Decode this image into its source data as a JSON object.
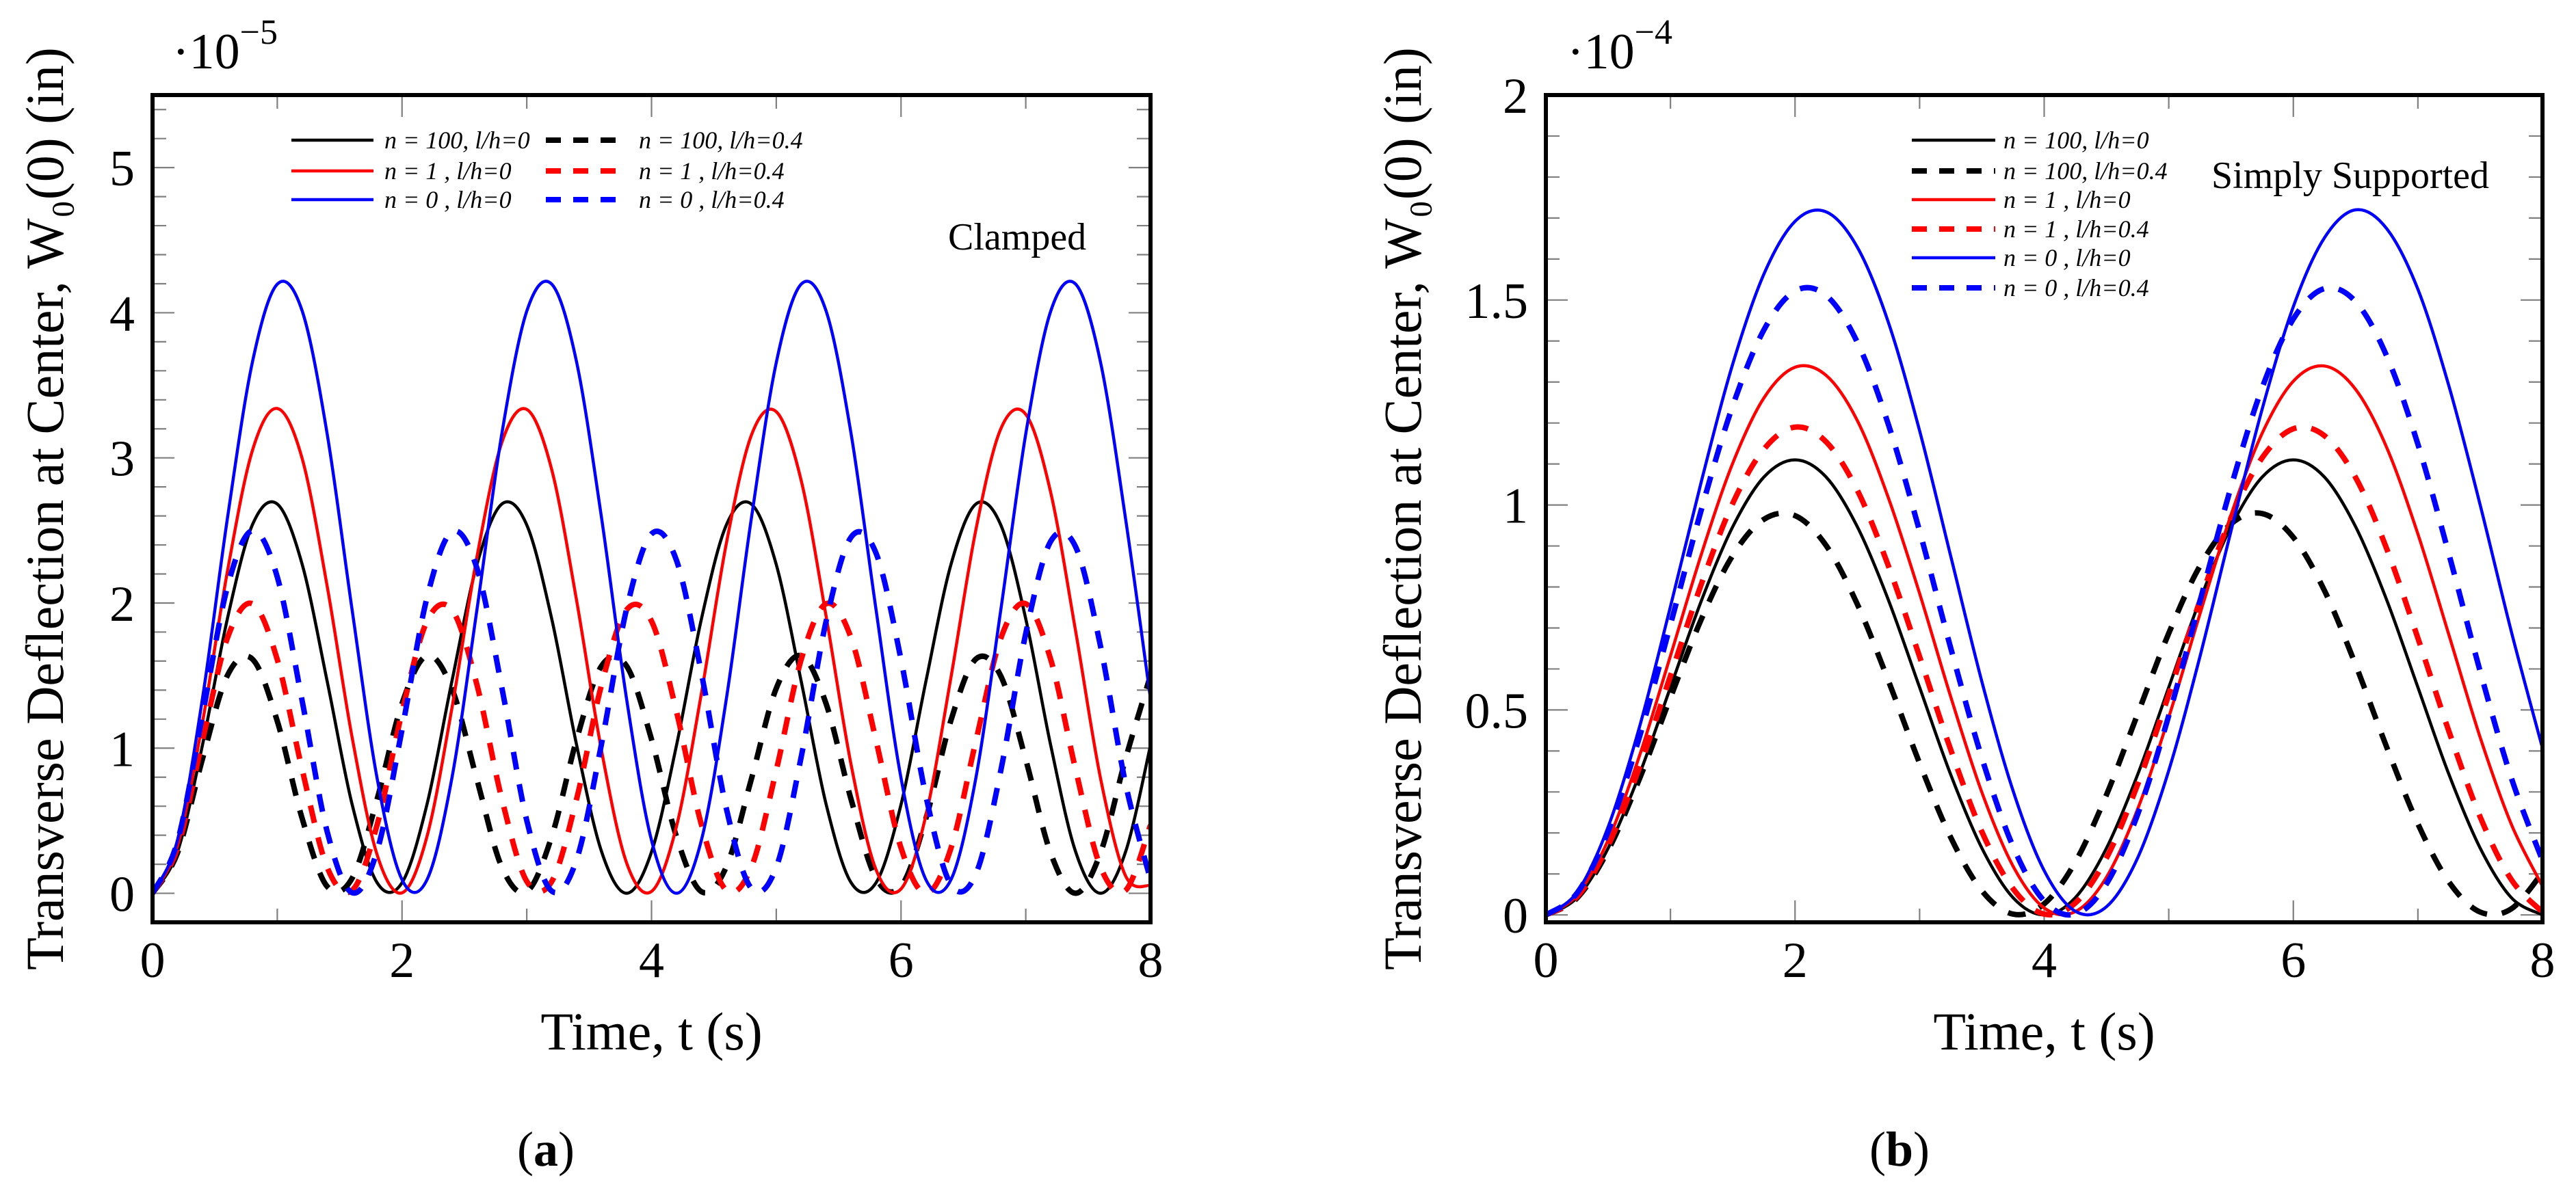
{
  "chart_data": [
    {
      "type": "line",
      "panel_label": "a",
      "title": "",
      "annotation": "Clamped",
      "xlabel": "Time, t (s)",
      "ylabel": "Transverse Deflection at Center, W₀(0) (in)",
      "y_multiplier": {
        "base": "·10",
        "exponent": "−5"
      },
      "xlim": [
        0,
        8
      ],
      "ylim": [
        -0.2,
        5.5
      ],
      "x_ticks": [
        0,
        2,
        4,
        6,
        8
      ],
      "x_tick_labels": [
        "0",
        "2",
        "4",
        "6",
        "8"
      ],
      "x_minor_step": 1,
      "y_ticks": [
        0,
        1,
        2,
        3,
        4,
        5
      ],
      "y_tick_labels": [
        "0",
        "1",
        "2",
        "3",
        "4",
        "5"
      ],
      "y_minor_step": 0.2,
      "grid": false,
      "legend_placement": "top-left, two columns",
      "x": [
        0,
        0.2,
        0.4,
        0.6,
        0.8,
        1,
        1.2,
        1.4,
        1.6,
        1.8,
        2,
        2.2,
        2.4,
        2.6,
        2.8,
        3,
        3.2,
        3.4,
        3.6,
        3.8,
        4,
        4.2,
        4.4,
        4.6,
        4.8,
        5,
        5.2,
        5.4,
        5.6,
        5.8,
        6,
        6.2,
        6.4,
        6.6,
        6.8,
        7,
        7.2,
        7.4,
        7.6,
        7.8,
        8
      ],
      "series": [
        {
          "name": "n = 100, l/h=0",
          "color": "#000000",
          "dash": false,
          "values": [
            0,
            0.285,
            1.019,
            1.891,
            2.538,
            2.682,
            2.264,
            1.461,
            0.612,
            0.073,
            0.073,
            0.612,
            1.462,
            2.264,
            2.682,
            2.538,
            1.891,
            1.019,
            0.285,
            0,
            0.285,
            1.019,
            1.891,
            2.538,
            2.682,
            2.264,
            1.461,
            0.612,
            0.073,
            0.073,
            0.612,
            1.462,
            2.264,
            2.682,
            2.538,
            1.891,
            1.019,
            0.285,
            0,
            0.285,
            1.019
          ]
        },
        {
          "name": "n = 100, l/h=0.4",
          "color": "#000000",
          "dash": true,
          "values": [
            0,
            0.278,
            0.924,
            1.5,
            1.614,
            1.186,
            0.513,
            0.047,
            0.104,
            0.648,
            1.308,
            1.637,
            1.409,
            0.785,
            0.181,
            0.012,
            0.391,
            1.061,
            1.568,
            1.566,
            1.06,
            0.39,
            0.011,
            0.183,
            0.786,
            1.412,
            1.637,
            1.305,
            0.646,
            0.103,
            0.048,
            0.516,
            1.191,
            1.614,
            1.497,
            0.921,
            0.276,
            0,
            0.28,
            0.927,
            1.501
          ]
        },
        {
          "name": "n = 1    , l/h=0",
          "color": "#ff0000",
          "dash": false,
          "values": [
            0,
            0.326,
            1.174,
            2.216,
            3.049,
            3.34,
            2.993,
            2.116,
            1.074,
            0.266,
            0.003,
            0.391,
            1.276,
            2.316,
            3.105,
            3.334,
            2.919,
            2.014,
            0.979,
            0.21,
            0.013,
            0.461,
            1.379,
            2.411,
            3.155,
            3.318,
            2.844,
            1.907,
            0.885,
            0.162,
            0.03,
            0.538,
            1.486,
            2.505,
            3.2,
            3.3,
            2.761,
            1.804,
            0.79,
            0.12,
            0.053
          ]
        },
        {
          "name": "n = 1    , l/h=0.4",
          "color": "#ff0000",
          "dash": true,
          "values": [
            0,
            0.311,
            1.05,
            1.758,
            1.995,
            1.61,
            0.85,
            0.179,
            0.02,
            0.471,
            1.25,
            1.874,
            1.954,
            1.438,
            0.651,
            0.082,
            0.081,
            0.652,
            1.44,
            1.953,
            1.875,
            1.252,
            0.472,
            0.021,
            0.179,
            0.848,
            1.611,
            1.995,
            1.759,
            1.052,
            0.312,
            0,
            0.31,
            1.049,
            1.757,
            1.995,
            1.611,
            0.851,
            0.18,
            0.02,
            0.47
          ]
        },
        {
          "name": "n = 0    , l/h=0",
          "color": "#0000ff",
          "dash": false,
          "values": [
            0,
            0.367,
            1.34,
            2.581,
            3.657,
            4.197,
            4.011,
            3.165,
            1.952,
            0.793,
            0.093,
            0.093,
            0.795,
            1.952,
            3.165,
            4.011,
            4.197,
            3.657,
            2.581,
            1.34,
            0.365,
            0,
            0.367,
            1.34,
            2.581,
            3.657,
            4.197,
            4.011,
            3.165,
            1.952,
            0.793,
            0.093,
            0.093,
            0.795,
            1.952,
            3.165,
            4.011,
            4.197,
            3.657,
            2.581,
            1.34
          ]
        },
        {
          "name": "n = 0    , l/h=0.4",
          "color": "#0000ff",
          "dash": true,
          "values": [
            0,
            0.357,
            1.226,
            2.11,
            2.499,
            2.179,
            1.322,
            0.425,
            0.004,
            0.292,
            1.129,
            2.036,
            2.491,
            2.241,
            1.419,
            0.502,
            0.015,
            0.234,
            1.034,
            1.958,
            2.476,
            2.294,
            1.515,
            0.584,
            0.034,
            0.18,
            0.939,
            1.875,
            2.454,
            2.343,
            1.609,
            0.668,
            0.06,
            0.133,
            0.845,
            1.79,
            2.425,
            2.386,
            1.7,
            0.755,
            0.094
          ]
        }
      ]
    },
    {
      "type": "line",
      "panel_label": "b",
      "title": "",
      "annotation": "Simply Supported",
      "xlabel": "Time, t (s)",
      "ylabel": "Transverse Deflection at Center, W₀(0) (in)",
      "y_multiplier": {
        "base": "·10",
        "exponent": "−4"
      },
      "xlim": [
        0,
        8
      ],
      "ylim": [
        -0.018,
        2
      ],
      "x_ticks": [
        0,
        2,
        4,
        6,
        8
      ],
      "x_tick_labels": [
        "0",
        "2",
        "4",
        "6",
        "8"
      ],
      "x_minor_step": 1,
      "y_ticks": [
        0,
        0.5,
        1,
        1.5,
        2
      ],
      "y_tick_labels": [
        "0",
        "0.5",
        "1",
        "1.5",
        "2"
      ],
      "y_minor_step": 0.1,
      "grid": false,
      "legend_placement": "top-center, single column",
      "x": [
        0,
        0.25,
        0.5,
        0.75,
        1,
        1.25,
        1.5,
        1.75,
        2,
        2.25,
        2.5,
        2.75,
        3,
        3.25,
        3.5,
        3.75,
        4,
        4.25,
        4.5,
        4.75,
        5,
        5.25,
        5.5,
        5.75,
        6,
        6.25,
        6.5,
        6.75,
        7,
        7.25,
        7.5,
        7.75,
        8
      ],
      "series": [
        {
          "name": "n = 100, l/h=0",
          "color": "#000000",
          "dash": false,
          "values": [
            0,
            0.042,
            0.163,
            0.342,
            0.555,
            0.768,
            0.947,
            1.068,
            1.11,
            1.068,
            0.947,
            0.768,
            0.555,
            0.342,
            0.163,
            0.042,
            0,
            0.042,
            0.163,
            0.342,
            0.555,
            0.768,
            0.947,
            1.068,
            1.11,
            1.068,
            0.947,
            0.768,
            0.555,
            0.342,
            0.163,
            0.042,
            0
          ]
        },
        {
          "name": "n = 100, l/h=0.4",
          "color": "#000000",
          "dash": true,
          "values": [
            0,
            0.041,
            0.158,
            0.331,
            0.53,
            0.723,
            0.877,
            0.965,
            0.974,
            0.901,
            0.758,
            0.571,
            0.37,
            0.189,
            0.059,
            0.002,
            0.027,
            0.129,
            0.293,
            0.49,
            0.687,
            0.851,
            0.954,
            0.979,
            0.921,
            0.791,
            0.61,
            0.409,
            0.222,
            0.08,
            0.007,
            0.015,
            0.103
          ]
        },
        {
          "name": "n = 1    , l/h=0",
          "color": "#ff0000",
          "dash": false,
          "values": [
            0,
            0.048,
            0.183,
            0.387,
            0.632,
            0.882,
            1.102,
            1.261,
            1.336,
            1.316,
            1.206,
            1.017,
            0.784,
            0.532,
            0.299,
            0.119,
            0.017,
            0.008,
            0.092,
            0.258,
            0.482,
            0.734,
            0.976,
            1.175,
            1.302,
            1.339,
            1.282,
            1.14,
            0.929,
            0.682,
            0.433,
            0.221,
            0.07
          ]
        },
        {
          "name": "n = 1    , l/h=0.4",
          "color": "#ff0000",
          "dash": true,
          "values": [
            0,
            0.044,
            0.17,
            0.359,
            0.583,
            0.809,
            1.004,
            1.136,
            1.19,
            1.154,
            1.036,
            0.851,
            0.63,
            0.403,
            0.203,
            0.064,
            0.002,
            0.029,
            0.139,
            0.318,
            0.537,
            0.766,
            0.969,
            1.115,
            1.186,
            1.169,
            1.067,
            0.893,
            0.675,
            0.447,
            0.239,
            0.086,
            0.007
          ]
        },
        {
          "name": "n = 0    , l/h=0",
          "color": "#0000ff",
          "dash": false,
          "values": [
            0,
            0.055,
            0.215,
            0.457,
            0.752,
            1.06,
            1.344,
            1.563,
            1.692,
            1.715,
            1.629,
            1.445,
            1.181,
            0.875,
            0.569,
            0.303,
            0.108,
            0.009,
            0.02,
            0.139,
            0.352,
            0.63,
            0.937,
            1.234,
            1.484,
            1.652,
            1.72,
            1.674,
            1.526,
            1.289,
            1.0,
            0.691,
            0.407
          ]
        },
        {
          "name": "n = 0    , l/h=0.4",
          "color": "#0000ff",
          "dash": true,
          "values": [
            0,
            0.053,
            0.204,
            0.433,
            0.708,
            0.991,
            1.242,
            1.427,
            1.522,
            1.511,
            1.397,
            1.196,
            0.936,
            0.651,
            0.383,
            0.167,
            0.034,
            0.002,
            0.076,
            0.245,
            0.486,
            0.765,
            1.044,
            1.286,
            1.454,
            1.528,
            1.496,
            1.363,
            1.148,
            0.879,
            0.594,
            0.334,
            0.133
          ]
        }
      ]
    }
  ]
}
